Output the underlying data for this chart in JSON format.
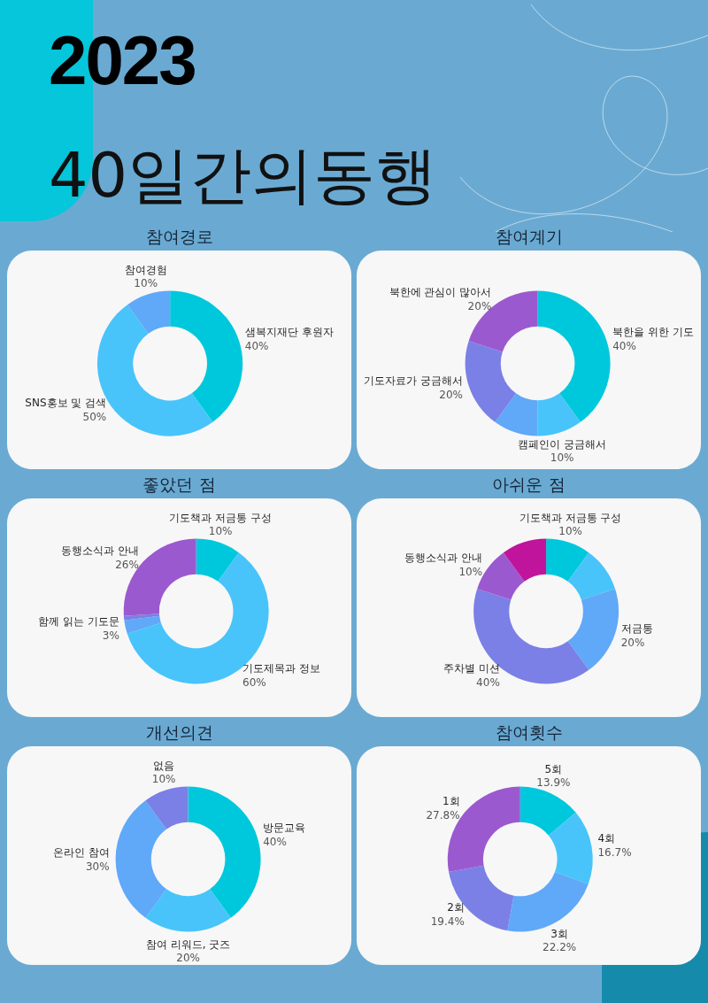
{
  "chart_data": [
    {
      "type": "other",
      "title": "2023",
      "subtitle": "40일간의동행"
    },
    {
      "type": "donut",
      "title": "참여경로",
      "categories": [
        "샘복지재단 후원자",
        "SNS홍보 및 검색",
        "참여경험"
      ],
      "values": [
        40,
        50,
        10
      ],
      "colors": [
        "#00c8dc",
        "#48c4fa",
        "#60a8f8"
      ],
      "value_labels": [
        "40%",
        "50%",
        "10%"
      ]
    },
    {
      "type": "donut",
      "title": "참여계기",
      "categories": [
        "북한을 위한 기도",
        "캠페인이 궁금해서",
        null,
        "기도자료가 궁금해서",
        "북한에 관심이 많아서"
      ],
      "values": [
        40,
        10,
        10,
        20,
        20
      ],
      "colors": [
        "#00c8dc",
        "#48c4fa",
        "#60a8f8",
        "#7b80e6",
        "#9b59d0"
      ],
      "value_labels": [
        "40%",
        "10%",
        null,
        "20%",
        "20%"
      ]
    },
    {
      "type": "donut",
      "title": "좋았던 점",
      "categories": [
        "기도책과 저금통 구성",
        "기도제목과 정보",
        "함께 읽는 기도문",
        null,
        "동행소식과 안내"
      ],
      "values": [
        10,
        60,
        3,
        1,
        26
      ],
      "colors": [
        "#00c8dc",
        "#48c4fa",
        "#60a8f8",
        "#7b80e6",
        "#9b59d0"
      ],
      "value_labels": [
        "10%",
        "60%",
        "3%",
        null,
        "26%"
      ]
    },
    {
      "type": "donut",
      "title": "아쉬운 점",
      "categories": [
        "기도책과 저금통 구성",
        null,
        "저금통",
        "주차별 미션",
        "동행소식과 안내",
        null
      ],
      "values": [
        10,
        10,
        20,
        40,
        10,
        10
      ],
      "colors": [
        "#00c8dc",
        "#48c4fa",
        "#60a8f8",
        "#7b80e6",
        "#9b59d0",
        "#c0149c"
      ],
      "value_labels": [
        "10%",
        null,
        "20%",
        "40%",
        "10%",
        null
      ]
    },
    {
      "type": "donut",
      "title": "개선의견",
      "categories": [
        "방문교육",
        "참여 리워드, 굿즈",
        "온라인 참여",
        "없음"
      ],
      "values": [
        40,
        20,
        30,
        10
      ],
      "colors": [
        "#00c8dc",
        "#48c4fa",
        "#60a8f8",
        "#7b80e6"
      ],
      "value_labels": [
        "40%",
        "20%",
        "30%",
        "10%"
      ]
    },
    {
      "type": "donut",
      "title": "참여횟수",
      "categories": [
        "5회",
        "4회",
        "3회",
        "2회",
        "1회"
      ],
      "values": [
        13.9,
        16.7,
        22.2,
        19.4,
        27.8
      ],
      "colors": [
        "#00c8dc",
        "#48c4fa",
        "#60a8f8",
        "#7b80e6",
        "#9b59d0"
      ],
      "value_labels": [
        "13.9%",
        "16.7%",
        "22.2%",
        "19.4%",
        "27.8%"
      ]
    }
  ]
}
